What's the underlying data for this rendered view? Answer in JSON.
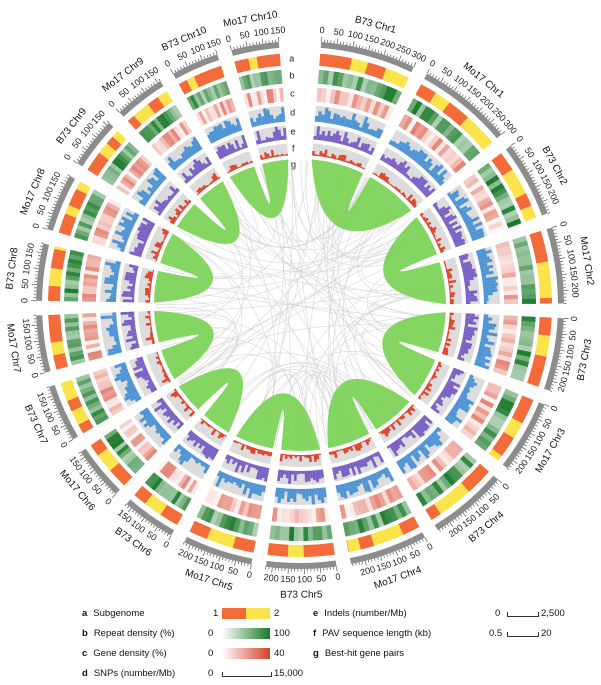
{
  "chromosomes": [
    {
      "name": "B73 Chr1",
      "size": 300
    },
    {
      "name": "Mo17 Chr1",
      "size": 300
    },
    {
      "name": "B73 Chr2",
      "size": 240
    },
    {
      "name": "Mo17 Chr2",
      "size": 240
    },
    {
      "name": "B73 Chr3",
      "size": 230
    },
    {
      "name": "Mo17 Chr3",
      "size": 230
    },
    {
      "name": "B73 Chr4",
      "size": 245
    },
    {
      "name": "Mo17 Chr4",
      "size": 245
    },
    {
      "name": "B73 Chr5",
      "size": 220
    },
    {
      "name": "Mo17 Chr5",
      "size": 220
    },
    {
      "name": "B73 Chr6",
      "size": 170
    },
    {
      "name": "Mo17 Chr6",
      "size": 170
    },
    {
      "name": "B73 Chr7",
      "size": 180
    },
    {
      "name": "Mo17 Chr7",
      "size": 180
    },
    {
      "name": "B73 Chr8",
      "size": 180
    },
    {
      "name": "Mo17 Chr8",
      "size": 180
    },
    {
      "name": "B73 Chr9",
      "size": 160
    },
    {
      "name": "Mo17 Chr9",
      "size": 160
    },
    {
      "name": "B73 Chr10",
      "size": 150
    },
    {
      "name": "Mo17 Chr10",
      "size": 150
    }
  ],
  "track_letters": [
    "a",
    "b",
    "c",
    "d",
    "e",
    "f",
    "g"
  ],
  "colors": {
    "subgenome1": "#f26b38",
    "subgenome2": "#fbe34b",
    "repeat_low": "#ffffff",
    "repeat_high": "#1b7a2a",
    "gene_low": "#ffffff",
    "gene_high": "#d6402a",
    "snp": "#4f95d6",
    "indel": "#7b61c6",
    "pav": "#e0442a",
    "synteny": "#7dd35a",
    "ideogram": "#8c8c8c",
    "track_bg": "#dcdcdc",
    "link": "#cfcfcf"
  },
  "legend": {
    "a": {
      "key": "a",
      "label": "Subgenome",
      "v1": "1",
      "v2": "2"
    },
    "b": {
      "key": "b",
      "label": "Repeat density (%)",
      "min": "0",
      "max": "100"
    },
    "c": {
      "key": "c",
      "label": "Gene density (%)",
      "min": "0",
      "max": "40"
    },
    "d": {
      "key": "d",
      "label": "SNPs (number/Mb)",
      "min": "0",
      "max": "15,000"
    },
    "e": {
      "key": "e",
      "label": "Indels (number/Mb)",
      "min": "0",
      "max": "2,500"
    },
    "f": {
      "key": "f",
      "label": "PAV sequence length (kb)",
      "min": "0.5",
      "max": "20"
    },
    "g": {
      "key": "g",
      "label": "Best-hit gene pairs"
    }
  }
}
